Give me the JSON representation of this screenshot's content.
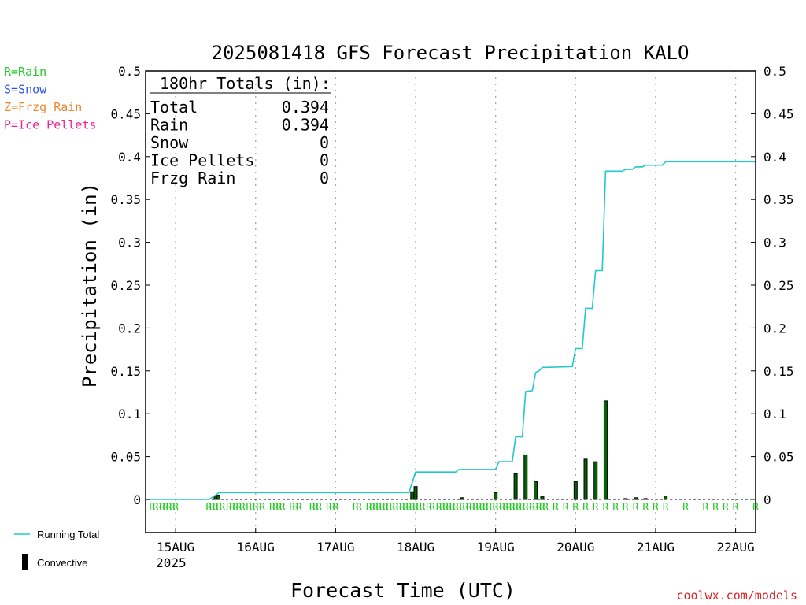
{
  "page": {
    "title": "2025081418 GFS Forecast Precipitation KALO",
    "credit": "coolwx.com/models"
  },
  "ptype_legend": [
    {
      "label": "R=Rain",
      "color": "#22cc22"
    },
    {
      "label": "S=Snow",
      "color": "#3355ee"
    },
    {
      "label": "Z=Frzg Rain",
      "color": "#ee8833"
    },
    {
      "label": "P=Ice Pellets",
      "color": "#ee2299"
    }
  ],
  "series_legend": {
    "running_total": "Running Total",
    "convective": "Convective"
  },
  "totals_box": {
    "header": "180hr Totals (in):",
    "rows": [
      {
        "label": "Total",
        "value": "0.394"
      },
      {
        "label": "Rain",
        "value": "0.394"
      },
      {
        "label": "Snow",
        "value": "0"
      },
      {
        "label": "Ice Pellets",
        "value": "0"
      },
      {
        "label": "Frzg Rain",
        "value": "0"
      }
    ]
  },
  "colors": {
    "running_total": "#22c8cc",
    "bars": "#000000",
    "bar_fill": "#006600",
    "ptype_marks": "#22cc22",
    "credit": "#dd2222",
    "gridline": "#aaaaaa"
  },
  "chart_data": {
    "type": "bar",
    "title": "2025081418 GFS Forecast Precipitation KALO",
    "xlabel": "Forecast Time (UTC)",
    "ylabel": "Precipitation (in)",
    "ylim": [
      0,
      0.5
    ],
    "y_ticks": [
      "0",
      "0.05",
      "0.1",
      "0.15",
      "0.2",
      "0.25",
      "0.3",
      "0.35",
      "0.4",
      "0.45",
      "0.5"
    ],
    "x_range_hours": [
      -3,
      180
    ],
    "x_ticks": [
      {
        "hour": 6,
        "label": "15AUG",
        "sublabel": "2025"
      },
      {
        "hour": 30,
        "label": "16AUG",
        "sublabel": ""
      },
      {
        "hour": 54,
        "label": "17AUG",
        "sublabel": ""
      },
      {
        "hour": 78,
        "label": "18AUG",
        "sublabel": ""
      },
      {
        "hour": 102,
        "label": "19AUG",
        "sublabel": ""
      },
      {
        "hour": 126,
        "label": "20AUG",
        "sublabel": ""
      },
      {
        "hour": 150,
        "label": "21AUG",
        "sublabel": ""
      },
      {
        "hour": 174,
        "label": "22AUG",
        "sublabel": ""
      }
    ],
    "grid": true,
    "series": [
      {
        "name": "Convective",
        "points": [
          {
            "x": 18,
            "y": 0.003
          },
          {
            "x": 18.8,
            "y": 0.005
          },
          {
            "x": 77,
            "y": 0.009
          },
          {
            "x": 78,
            "y": 0.015
          },
          {
            "x": 92,
            "y": 0.002
          },
          {
            "x": 102,
            "y": 0.008
          },
          {
            "x": 108,
            "y": 0.03
          },
          {
            "x": 111,
            "y": 0.052
          },
          {
            "x": 114,
            "y": 0.021
          },
          {
            "x": 116,
            "y": 0.004
          },
          {
            "x": 126,
            "y": 0.021
          },
          {
            "x": 129,
            "y": 0.047
          },
          {
            "x": 132,
            "y": 0.044
          },
          {
            "x": 135,
            "y": 0.115
          },
          {
            "x": 141,
            "y": 0.001
          },
          {
            "x": 144,
            "y": 0.002
          },
          {
            "x": 147,
            "y": 0.001
          },
          {
            "x": 153,
            "y": 0.004
          }
        ]
      },
      {
        "name": "Running Total",
        "points": [
          {
            "x": -3,
            "y": 0
          },
          {
            "x": 16,
            "y": 0
          },
          {
            "x": 18,
            "y": 0.005
          },
          {
            "x": 19,
            "y": 0.008
          },
          {
            "x": 76,
            "y": 0.008
          },
          {
            "x": 78,
            "y": 0.032
          },
          {
            "x": 90,
            "y": 0.032
          },
          {
            "x": 91,
            "y": 0.035
          },
          {
            "x": 102,
            "y": 0.035
          },
          {
            "x": 103,
            "y": 0.044
          },
          {
            "x": 107,
            "y": 0.044
          },
          {
            "x": 108,
            "y": 0.073
          },
          {
            "x": 110,
            "y": 0.073
          },
          {
            "x": 111,
            "y": 0.126
          },
          {
            "x": 113,
            "y": 0.127
          },
          {
            "x": 114,
            "y": 0.148
          },
          {
            "x": 115,
            "y": 0.15
          },
          {
            "x": 116,
            "y": 0.154
          },
          {
            "x": 125,
            "y": 0.155
          },
          {
            "x": 126,
            "y": 0.176
          },
          {
            "x": 128,
            "y": 0.176
          },
          {
            "x": 129,
            "y": 0.223
          },
          {
            "x": 131,
            "y": 0.223
          },
          {
            "x": 132,
            "y": 0.267
          },
          {
            "x": 134,
            "y": 0.267
          },
          {
            "x": 135,
            "y": 0.383
          },
          {
            "x": 140,
            "y": 0.383
          },
          {
            "x": 141,
            "y": 0.385
          },
          {
            "x": 143,
            "y": 0.385
          },
          {
            "x": 144,
            "y": 0.388
          },
          {
            "x": 146,
            "y": 0.388
          },
          {
            "x": 147,
            "y": 0.39
          },
          {
            "x": 152,
            "y": 0.39
          },
          {
            "x": 153,
            "y": 0.394
          },
          {
            "x": 180,
            "y": 0.394
          }
        ]
      }
    ],
    "ptype_marks": {
      "symbol": "R",
      "hours": [
        -1,
        0,
        1,
        2,
        3,
        4,
        5,
        6,
        16,
        17,
        18,
        19,
        20,
        22,
        23,
        24,
        25,
        26,
        28,
        29,
        30,
        31,
        32,
        35,
        36,
        37,
        38,
        41,
        42,
        43,
        47,
        48,
        49,
        52,
        53,
        54,
        60,
        61,
        64,
        65,
        66,
        67,
        68,
        69,
        70,
        71,
        72,
        73,
        74,
        75,
        76,
        77,
        78,
        79,
        80,
        82,
        83,
        85,
        86,
        87,
        88,
        89,
        90,
        91,
        92,
        93,
        94,
        95,
        96,
        97,
        98,
        99,
        100,
        101,
        102,
        103,
        104,
        105,
        106,
        107,
        108,
        109,
        110,
        111,
        112,
        113,
        114,
        115,
        116,
        117,
        120,
        123,
        126,
        129,
        132,
        135,
        138,
        141,
        144,
        147,
        150,
        153,
        159,
        165,
        168,
        171,
        174,
        180
      ]
    }
  }
}
